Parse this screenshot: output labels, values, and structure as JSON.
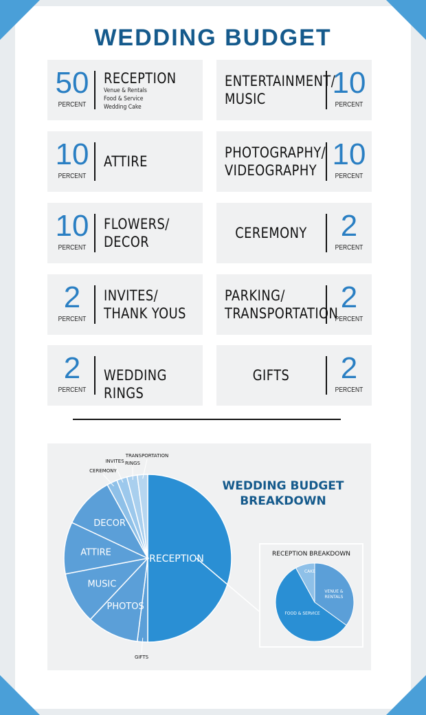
{
  "title": "WEDDING BUDGET",
  "percent_label": "PERCENT",
  "reception_details": [
    "Venue & Rentals",
    "Food & Service",
    "Wedding Cake"
  ],
  "items": [
    {
      "value": "50",
      "label": [
        "RECEPTION"
      ]
    },
    {
      "value": "10",
      "label": [
        "ENTERTAINMENT/",
        "MUSIC"
      ]
    },
    {
      "value": "10",
      "label": [
        "ATTIRE"
      ]
    },
    {
      "value": "10",
      "label": [
        "PHOTOGRAPHY/",
        "VIDEOGRAPHY"
      ]
    },
    {
      "value": "10",
      "label": [
        "FLOWERS/",
        "DECOR"
      ]
    },
    {
      "value": "2",
      "label": [
        "CEREMONY"
      ]
    },
    {
      "value": "2",
      "label": [
        "INVITES/",
        "THANK YOUS"
      ]
    },
    {
      "value": "2",
      "label": [
        "PARKING/",
        "TRANSPORTATION"
      ]
    },
    {
      "value": "2",
      "label": [
        "WEDDING RINGS"
      ]
    },
    {
      "value": "2",
      "label": [
        "GIFTS"
      ]
    }
  ],
  "colors": {
    "accent": "#2a7fc3",
    "title": "#155a8c",
    "card_bg": "#f0f1f2",
    "pie_main": "#2a8fd4",
    "pie_mid": "#5b9fd8",
    "pie_light": "#8ec0e8"
  },
  "chart_data": [
    {
      "type": "pie",
      "title": "WEDDING BUDGET BREAKDOWN",
      "categories": [
        "RECEPTION",
        "GIFTS",
        "PHOTOS",
        "MUSIC",
        "ATTIRE",
        "DECOR",
        "CEREMONY",
        "INVITES",
        "RINGS",
        "TRANSPORTATION"
      ],
      "values": [
        50,
        2,
        10,
        10,
        10,
        10,
        2,
        2,
        2,
        2
      ]
    },
    {
      "type": "pie",
      "title": "RECEPTION BREAKDOWN",
      "categories": [
        "VENUE & RENTALS",
        "FOOD & SERVICE",
        "CAKE"
      ],
      "values": [
        35,
        57,
        8
      ]
    }
  ]
}
